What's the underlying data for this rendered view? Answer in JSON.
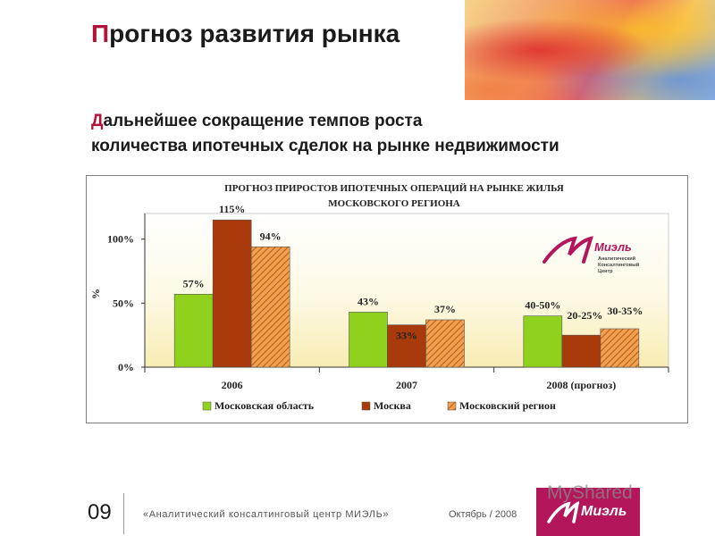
{
  "slide": {
    "title_first": "П",
    "title_rest": "рогноз развития рынка",
    "subtitle_first": "Д",
    "subtitle_line1_rest": "альнейшее сокращение темпов роста",
    "subtitle_line2": "количества ипотечных сделок на рынке недвижимости",
    "number": "09",
    "footer_org": "«Аналитический консалтинговый центр МИЭЛЬ»",
    "footer_date": "Октябрь / 2008",
    "watermark": "MyShared"
  },
  "logo": {
    "name": "Миэль",
    "chart_logo_name": "Миэль",
    "chart_logo_caption_1": "Аналитический",
    "chart_logo_caption_2": "Консалтинговый",
    "chart_logo_caption_3": "Центр"
  },
  "colors": {
    "accent": "#b3123a",
    "moscow_region": "#8fd11c",
    "moscow": "#a83a0c",
    "moscow_area_total": "#e5883a",
    "logo_bg": "#b3165a"
  },
  "chart_data": {
    "type": "bar",
    "title_line1": "ПРОГНОЗ ПРИРОСТОВ ИПОТЕЧНЫХ ОПЕРАЦИЙ НА РЫНКЕ ЖИЛЬЯ",
    "title_line2": "МОСКОВСКОГО РЕГИОНА",
    "ylabel": "%",
    "ylim": [
      0,
      120
    ],
    "yticks": [
      0,
      50,
      100
    ],
    "ytick_labels": [
      "0%",
      "50%",
      "100%"
    ],
    "categories": [
      "2006",
      "2007",
      "2008 (прогноз)"
    ],
    "series": [
      {
        "name": "Московская область",
        "values": [
          57,
          43,
          40
        ],
        "labels": [
          "57%",
          "43%",
          "40-50%"
        ],
        "color": "#8fd11c",
        "pattern": "solid"
      },
      {
        "name": "Москва",
        "values": [
          115,
          33,
          25
        ],
        "labels": [
          "115%",
          "33%",
          "20-25%"
        ],
        "color": "#a83a0c",
        "pattern": "solid"
      },
      {
        "name": "Московский регион",
        "values": [
          94,
          37,
          30
        ],
        "labels": [
          "94%",
          "37%",
          "30-35%"
        ],
        "color": "#e5883a",
        "pattern": "hatched"
      }
    ],
    "legend_position": "bottom",
    "grid": false
  }
}
